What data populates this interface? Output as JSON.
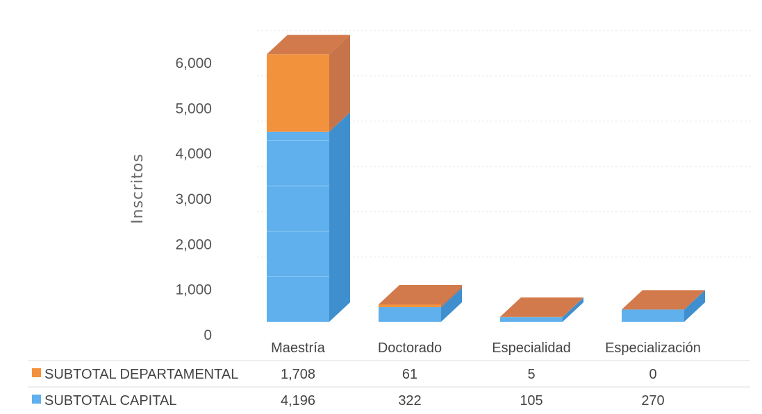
{
  "colors": {
    "capital_front": "#5fb0ec",
    "capital_side": "#3f8fce",
    "departamental_front": "#f2923d",
    "departamental_side": "#c8744a",
    "top_face": "#d27a4c"
  },
  "chart_data": {
    "type": "bar",
    "stacked": true,
    "three_d": true,
    "title": "",
    "xlabel": "",
    "ylabel": "Inscritos",
    "ylim": [
      0,
      6000
    ],
    "yticks": [
      "0",
      "1,000",
      "2,000",
      "3,000",
      "4,000",
      "5,000",
      "6,000"
    ],
    "grid": true,
    "legend_placement": "data table below chart",
    "categories": [
      "Maestría",
      "Doctorado",
      "Especialidad",
      "Especialización"
    ],
    "series": [
      {
        "name": "SUBTOTAL CAPITAL",
        "values": [
          4196,
          322,
          105,
          270
        ],
        "labels": [
          "4,196",
          "322",
          "105",
          "270"
        ]
      },
      {
        "name": "SUBTOTAL DEPARTAMENTAL",
        "values": [
          1708,
          61,
          5,
          0
        ],
        "labels": [
          "1,708",
          "61",
          "5",
          "0"
        ]
      }
    ]
  }
}
